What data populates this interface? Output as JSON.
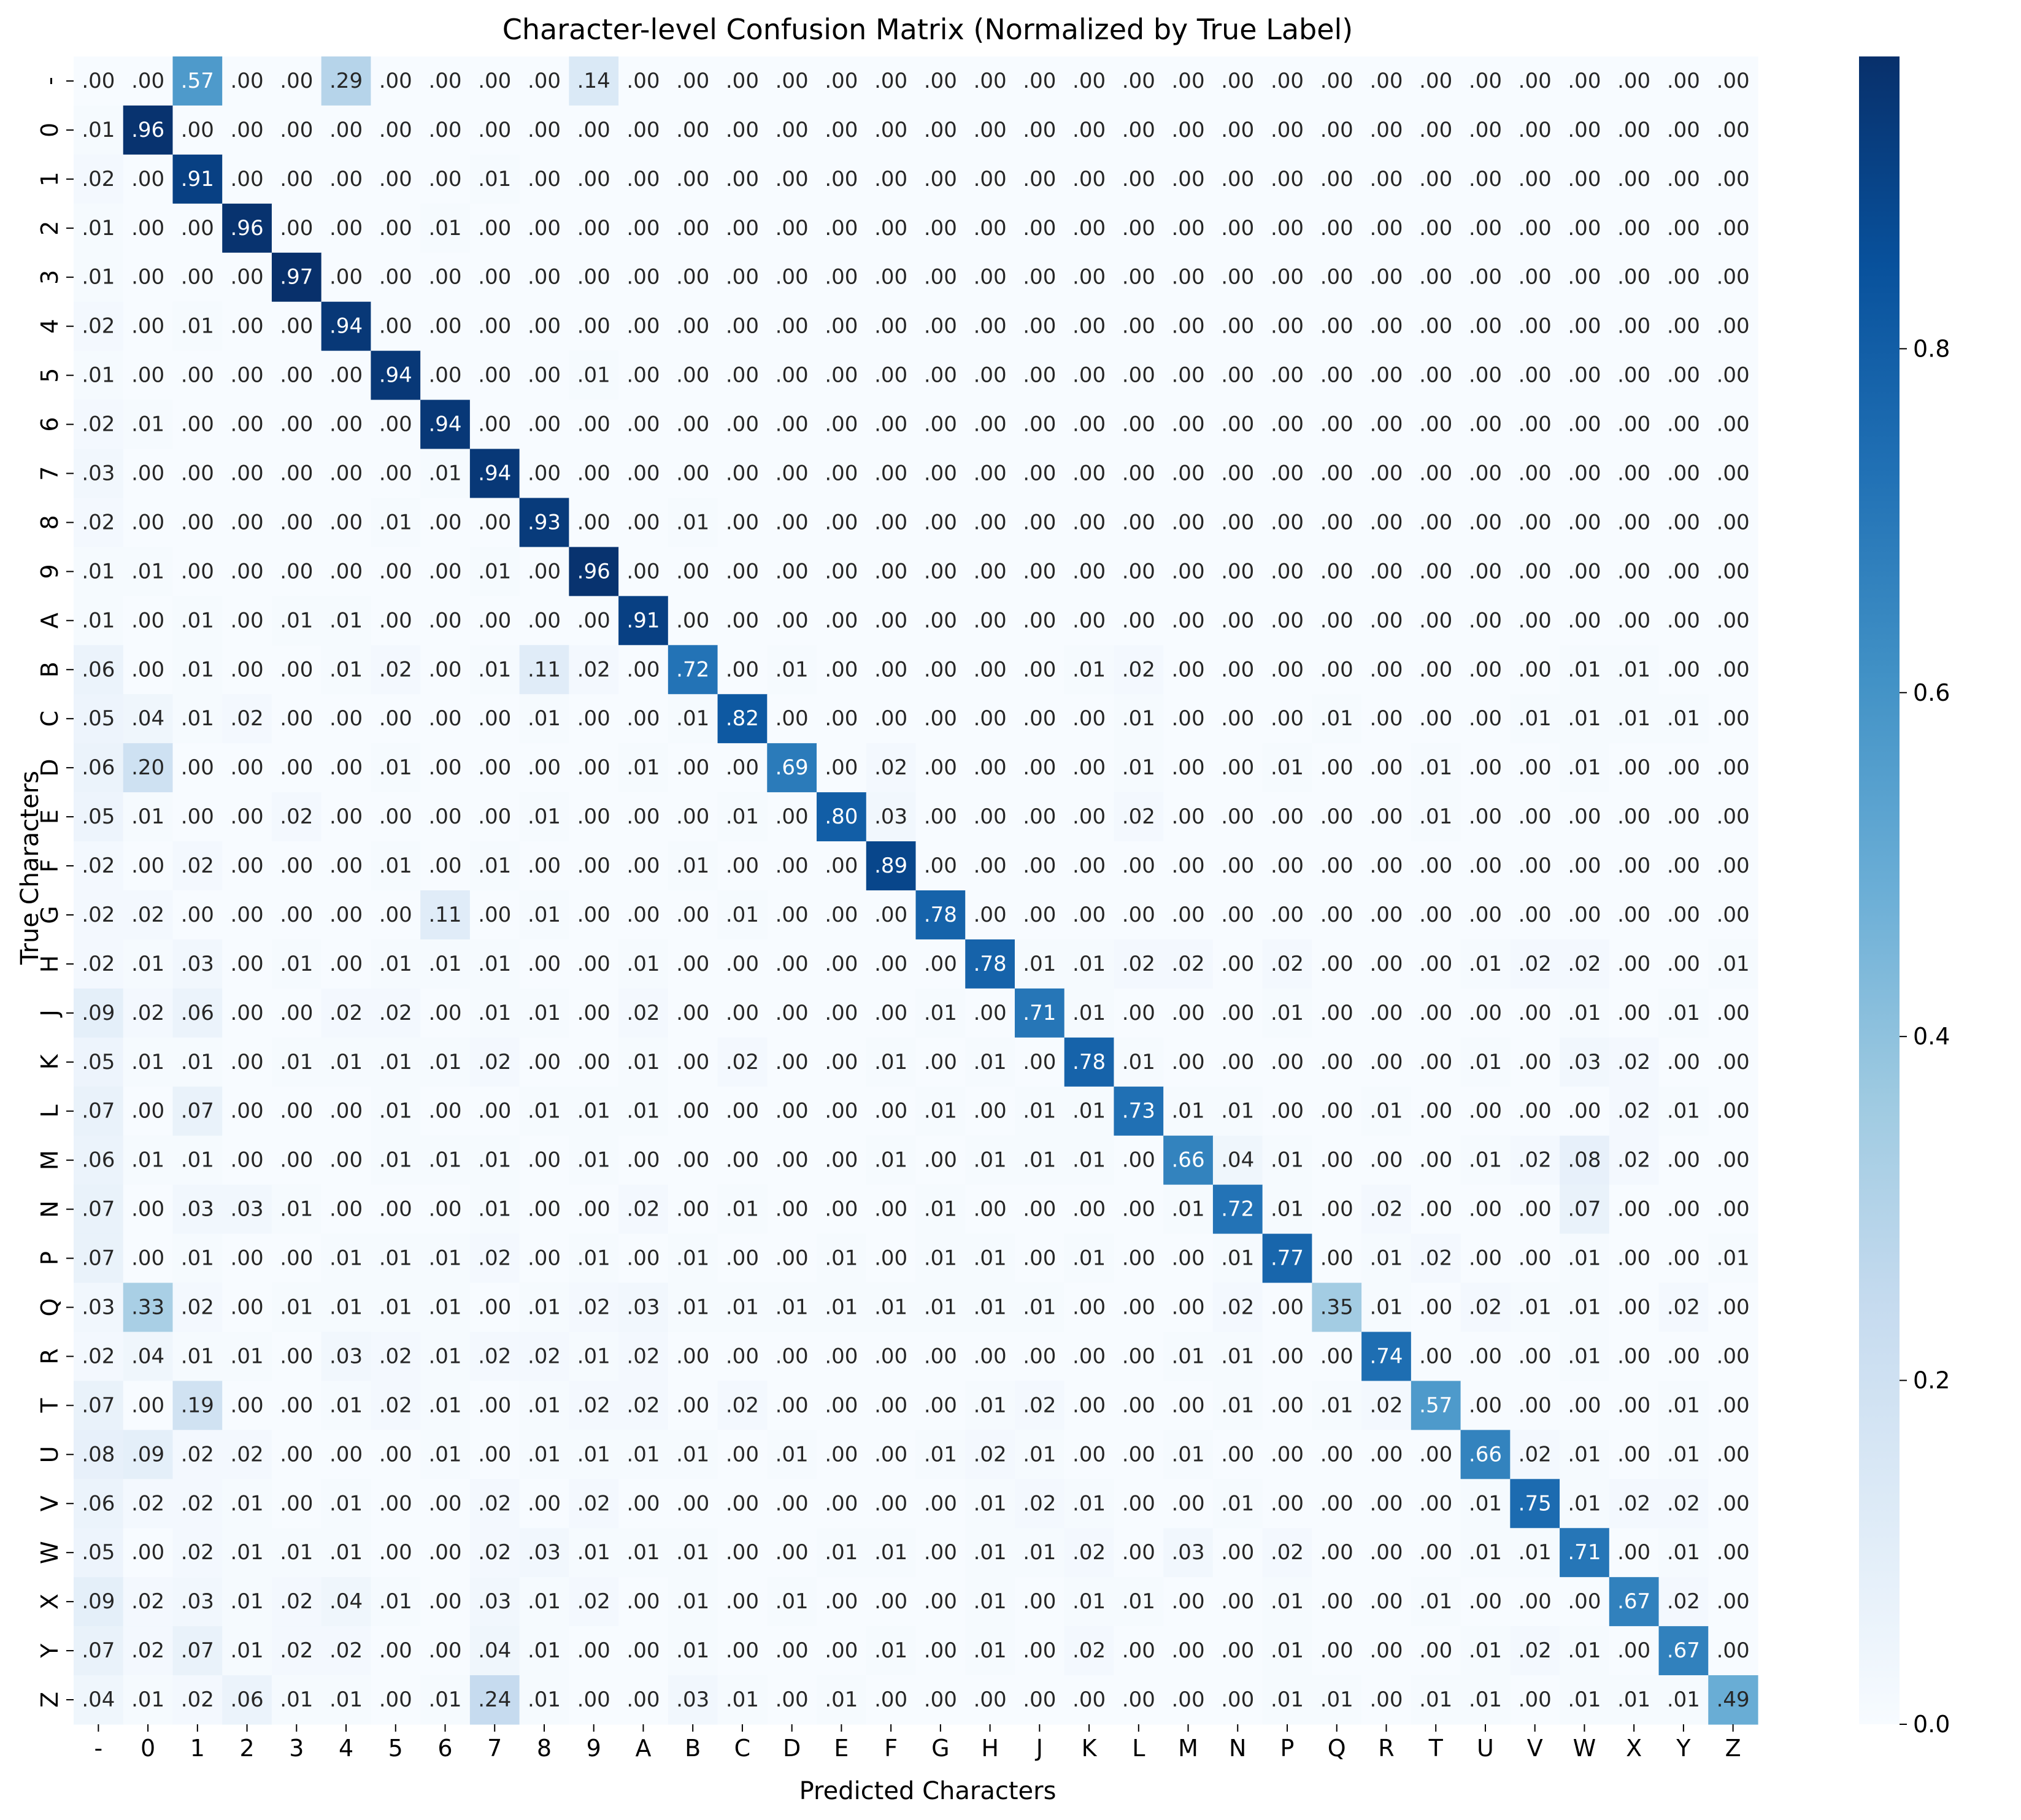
{
  "chart_data": {
    "type": "heatmap",
    "title": "Character-level Confusion Matrix (Normalized by True Label)",
    "xlabel": "Predicted Characters",
    "ylabel": "True Characters",
    "x_categories": [
      "-",
      "0",
      "1",
      "2",
      "3",
      "4",
      "5",
      "6",
      "7",
      "8",
      "9",
      "A",
      "B",
      "C",
      "D",
      "E",
      "F",
      "G",
      "H",
      "J",
      "K",
      "L",
      "M",
      "N",
      "P",
      "Q",
      "R",
      "T",
      "U",
      "V",
      "W",
      "X",
      "Y",
      "Z"
    ],
    "y_categories": [
      "-",
      "0",
      "1",
      "2",
      "3",
      "4",
      "5",
      "6",
      "7",
      "8",
      "9",
      "A",
      "B",
      "C",
      "D",
      "E",
      "F",
      "G",
      "H",
      "J",
      "K",
      "L",
      "M",
      "N",
      "P",
      "Q",
      "R",
      "T",
      "U",
      "V",
      "W",
      "X",
      "Y",
      "Z"
    ],
    "colormap": "Blues",
    "colorbar": {
      "min": 0.0,
      "max": 0.97,
      "ticks": [
        0.0,
        0.2,
        0.4,
        0.6,
        0.8
      ],
      "tick_labels": [
        "0.0",
        "0.2",
        "0.4",
        "0.6",
        "0.8"
      ]
    },
    "values": [
      [
        0.0,
        0.0,
        0.57,
        0.0,
        0.0,
        0.29,
        0.0,
        0.0,
        0.0,
        0.0,
        0.14,
        0.0,
        0.0,
        0.0,
        0.0,
        0.0,
        0.0,
        0.0,
        0.0,
        0.0,
        0.0,
        0.0,
        0.0,
        0.0,
        0.0,
        0.0,
        0.0,
        0.0,
        0.0,
        0.0,
        0.0,
        0.0,
        0.0,
        0.0
      ],
      [
        0.01,
        0.96,
        0.0,
        0.0,
        0.0,
        0.0,
        0.0,
        0.0,
        0.0,
        0.0,
        0.0,
        0.0,
        0.0,
        0.0,
        0.0,
        0.0,
        0.0,
        0.0,
        0.0,
        0.0,
        0.0,
        0.0,
        0.0,
        0.0,
        0.0,
        0.0,
        0.0,
        0.0,
        0.0,
        0.0,
        0.0,
        0.0,
        0.0,
        0.0
      ],
      [
        0.02,
        0.0,
        0.91,
        0.0,
        0.0,
        0.0,
        0.0,
        0.0,
        0.01,
        0.0,
        0.0,
        0.0,
        0.0,
        0.0,
        0.0,
        0.0,
        0.0,
        0.0,
        0.0,
        0.0,
        0.0,
        0.0,
        0.0,
        0.0,
        0.0,
        0.0,
        0.0,
        0.0,
        0.0,
        0.0,
        0.0,
        0.0,
        0.0,
        0.0
      ],
      [
        0.01,
        0.0,
        0.0,
        0.96,
        0.0,
        0.0,
        0.0,
        0.01,
        0.0,
        0.0,
        0.0,
        0.0,
        0.0,
        0.0,
        0.0,
        0.0,
        0.0,
        0.0,
        0.0,
        0.0,
        0.0,
        0.0,
        0.0,
        0.0,
        0.0,
        0.0,
        0.0,
        0.0,
        0.0,
        0.0,
        0.0,
        0.0,
        0.0,
        0.0
      ],
      [
        0.01,
        0.0,
        0.0,
        0.0,
        0.97,
        0.0,
        0.0,
        0.0,
        0.0,
        0.0,
        0.0,
        0.0,
        0.0,
        0.0,
        0.0,
        0.0,
        0.0,
        0.0,
        0.0,
        0.0,
        0.0,
        0.0,
        0.0,
        0.0,
        0.0,
        0.0,
        0.0,
        0.0,
        0.0,
        0.0,
        0.0,
        0.0,
        0.0,
        0.0
      ],
      [
        0.02,
        0.0,
        0.01,
        0.0,
        0.0,
        0.94,
        0.0,
        0.0,
        0.0,
        0.0,
        0.0,
        0.0,
        0.0,
        0.0,
        0.0,
        0.0,
        0.0,
        0.0,
        0.0,
        0.0,
        0.0,
        0.0,
        0.0,
        0.0,
        0.0,
        0.0,
        0.0,
        0.0,
        0.0,
        0.0,
        0.0,
        0.0,
        0.0,
        0.0
      ],
      [
        0.01,
        0.0,
        0.0,
        0.0,
        0.0,
        0.0,
        0.94,
        0.0,
        0.0,
        0.0,
        0.01,
        0.0,
        0.0,
        0.0,
        0.0,
        0.0,
        0.0,
        0.0,
        0.0,
        0.0,
        0.0,
        0.0,
        0.0,
        0.0,
        0.0,
        0.0,
        0.0,
        0.0,
        0.0,
        0.0,
        0.0,
        0.0,
        0.0,
        0.0
      ],
      [
        0.02,
        0.01,
        0.0,
        0.0,
        0.0,
        0.0,
        0.0,
        0.94,
        0.0,
        0.0,
        0.0,
        0.0,
        0.0,
        0.0,
        0.0,
        0.0,
        0.0,
        0.0,
        0.0,
        0.0,
        0.0,
        0.0,
        0.0,
        0.0,
        0.0,
        0.0,
        0.0,
        0.0,
        0.0,
        0.0,
        0.0,
        0.0,
        0.0,
        0.0
      ],
      [
        0.03,
        0.0,
        0.0,
        0.0,
        0.0,
        0.0,
        0.0,
        0.01,
        0.94,
        0.0,
        0.0,
        0.0,
        0.0,
        0.0,
        0.0,
        0.0,
        0.0,
        0.0,
        0.0,
        0.0,
        0.0,
        0.0,
        0.0,
        0.0,
        0.0,
        0.0,
        0.0,
        0.0,
        0.0,
        0.0,
        0.0,
        0.0,
        0.0,
        0.0
      ],
      [
        0.02,
        0.0,
        0.0,
        0.0,
        0.0,
        0.0,
        0.01,
        0.0,
        0.0,
        0.93,
        0.0,
        0.0,
        0.01,
        0.0,
        0.0,
        0.0,
        0.0,
        0.0,
        0.0,
        0.0,
        0.0,
        0.0,
        0.0,
        0.0,
        0.0,
        0.0,
        0.0,
        0.0,
        0.0,
        0.0,
        0.0,
        0.0,
        0.0,
        0.0
      ],
      [
        0.01,
        0.01,
        0.0,
        0.0,
        0.0,
        0.0,
        0.0,
        0.0,
        0.01,
        0.0,
        0.96,
        0.0,
        0.0,
        0.0,
        0.0,
        0.0,
        0.0,
        0.0,
        0.0,
        0.0,
        0.0,
        0.0,
        0.0,
        0.0,
        0.0,
        0.0,
        0.0,
        0.0,
        0.0,
        0.0,
        0.0,
        0.0,
        0.0,
        0.0
      ],
      [
        0.01,
        0.0,
        0.01,
        0.0,
        0.01,
        0.01,
        0.0,
        0.0,
        0.0,
        0.0,
        0.0,
        0.91,
        0.0,
        0.0,
        0.0,
        0.0,
        0.0,
        0.0,
        0.0,
        0.0,
        0.0,
        0.0,
        0.0,
        0.0,
        0.0,
        0.0,
        0.0,
        0.0,
        0.0,
        0.0,
        0.0,
        0.0,
        0.0,
        0.0
      ],
      [
        0.06,
        0.0,
        0.01,
        0.0,
        0.0,
        0.01,
        0.02,
        0.0,
        0.01,
        0.11,
        0.02,
        0.0,
        0.72,
        0.0,
        0.01,
        0.0,
        0.0,
        0.0,
        0.0,
        0.0,
        0.01,
        0.02,
        0.0,
        0.0,
        0.0,
        0.0,
        0.0,
        0.0,
        0.0,
        0.0,
        0.01,
        0.01,
        0.0,
        0.0
      ],
      [
        0.05,
        0.04,
        0.01,
        0.02,
        0.0,
        0.0,
        0.0,
        0.0,
        0.0,
        0.01,
        0.0,
        0.0,
        0.01,
        0.82,
        0.0,
        0.0,
        0.0,
        0.0,
        0.0,
        0.0,
        0.0,
        0.01,
        0.0,
        0.0,
        0.0,
        0.01,
        0.0,
        0.0,
        0.0,
        0.01,
        0.01,
        0.01,
        0.01,
        0.0
      ],
      [
        0.06,
        0.2,
        0.0,
        0.0,
        0.0,
        0.0,
        0.01,
        0.0,
        0.0,
        0.0,
        0.0,
        0.01,
        0.0,
        0.0,
        0.69,
        0.0,
        0.02,
        0.0,
        0.0,
        0.0,
        0.0,
        0.01,
        0.0,
        0.0,
        0.01,
        0.0,
        0.0,
        0.01,
        0.0,
        0.0,
        0.01,
        0.0,
        0.0,
        0.0
      ],
      [
        0.05,
        0.01,
        0.0,
        0.0,
        0.02,
        0.0,
        0.0,
        0.0,
        0.0,
        0.01,
        0.0,
        0.0,
        0.0,
        0.01,
        0.0,
        0.8,
        0.03,
        0.0,
        0.0,
        0.0,
        0.0,
        0.02,
        0.0,
        0.0,
        0.0,
        0.0,
        0.0,
        0.01,
        0.0,
        0.0,
        0.0,
        0.0,
        0.0,
        0.0
      ],
      [
        0.02,
        0.0,
        0.02,
        0.0,
        0.0,
        0.0,
        0.01,
        0.0,
        0.01,
        0.0,
        0.0,
        0.0,
        0.01,
        0.0,
        0.0,
        0.0,
        0.89,
        0.0,
        0.0,
        0.0,
        0.0,
        0.0,
        0.0,
        0.0,
        0.0,
        0.0,
        0.0,
        0.0,
        0.0,
        0.0,
        0.0,
        0.0,
        0.0,
        0.0
      ],
      [
        0.02,
        0.02,
        0.0,
        0.0,
        0.0,
        0.0,
        0.0,
        0.11,
        0.0,
        0.01,
        0.0,
        0.0,
        0.0,
        0.01,
        0.0,
        0.0,
        0.0,
        0.78,
        0.0,
        0.0,
        0.0,
        0.0,
        0.0,
        0.0,
        0.0,
        0.0,
        0.0,
        0.0,
        0.0,
        0.0,
        0.0,
        0.0,
        0.0,
        0.0
      ],
      [
        0.02,
        0.01,
        0.03,
        0.0,
        0.01,
        0.0,
        0.01,
        0.01,
        0.01,
        0.0,
        0.0,
        0.01,
        0.0,
        0.0,
        0.0,
        0.0,
        0.0,
        0.0,
        0.78,
        0.01,
        0.01,
        0.02,
        0.02,
        0.0,
        0.02,
        0.0,
        0.0,
        0.0,
        0.01,
        0.02,
        0.02,
        0.0,
        0.0,
        0.01
      ],
      [
        0.09,
        0.02,
        0.06,
        0.0,
        0.0,
        0.02,
        0.02,
        0.0,
        0.01,
        0.01,
        0.0,
        0.02,
        0.0,
        0.0,
        0.0,
        0.0,
        0.0,
        0.01,
        0.0,
        0.71,
        0.01,
        0.0,
        0.0,
        0.0,
        0.01,
        0.0,
        0.0,
        0.0,
        0.0,
        0.0,
        0.01,
        0.0,
        0.01,
        0.0
      ],
      [
        0.05,
        0.01,
        0.01,
        0.0,
        0.01,
        0.01,
        0.01,
        0.01,
        0.02,
        0.0,
        0.0,
        0.01,
        0.0,
        0.02,
        0.0,
        0.0,
        0.01,
        0.0,
        0.01,
        0.0,
        0.78,
        0.01,
        0.0,
        0.0,
        0.0,
        0.0,
        0.0,
        0.0,
        0.01,
        0.0,
        0.03,
        0.02,
        0.0,
        0.0
      ],
      [
        0.07,
        0.0,
        0.07,
        0.0,
        0.0,
        0.0,
        0.01,
        0.0,
        0.0,
        0.01,
        0.01,
        0.01,
        0.0,
        0.0,
        0.0,
        0.0,
        0.0,
        0.01,
        0.0,
        0.01,
        0.01,
        0.73,
        0.01,
        0.01,
        0.0,
        0.0,
        0.01,
        0.0,
        0.0,
        0.0,
        0.0,
        0.02,
        0.01,
        0.0
      ],
      [
        0.06,
        0.01,
        0.01,
        0.0,
        0.0,
        0.0,
        0.01,
        0.01,
        0.01,
        0.0,
        0.01,
        0.0,
        0.0,
        0.0,
        0.0,
        0.0,
        0.01,
        0.0,
        0.01,
        0.01,
        0.01,
        0.0,
        0.66,
        0.04,
        0.01,
        0.0,
        0.0,
        0.0,
        0.01,
        0.02,
        0.08,
        0.02,
        0.0,
        0.0
      ],
      [
        0.07,
        0.0,
        0.03,
        0.03,
        0.01,
        0.0,
        0.0,
        0.0,
        0.01,
        0.0,
        0.0,
        0.02,
        0.0,
        0.01,
        0.0,
        0.0,
        0.0,
        0.01,
        0.0,
        0.0,
        0.0,
        0.0,
        0.01,
        0.72,
        0.01,
        0.0,
        0.02,
        0.0,
        0.0,
        0.0,
        0.07,
        0.0,
        0.0,
        0.0
      ],
      [
        0.07,
        0.0,
        0.01,
        0.0,
        0.0,
        0.01,
        0.01,
        0.01,
        0.02,
        0.0,
        0.01,
        0.0,
        0.01,
        0.0,
        0.0,
        0.01,
        0.0,
        0.01,
        0.01,
        0.0,
        0.01,
        0.0,
        0.0,
        0.01,
        0.77,
        0.0,
        0.01,
        0.02,
        0.0,
        0.0,
        0.01,
        0.0,
        0.0,
        0.01
      ],
      [
        0.03,
        0.33,
        0.02,
        0.0,
        0.01,
        0.01,
        0.01,
        0.01,
        0.0,
        0.01,
        0.02,
        0.03,
        0.01,
        0.01,
        0.01,
        0.01,
        0.01,
        0.01,
        0.01,
        0.01,
        0.0,
        0.0,
        0.0,
        0.02,
        0.0,
        0.35,
        0.01,
        0.0,
        0.02,
        0.01,
        0.01,
        0.0,
        0.02,
        0.0
      ],
      [
        0.02,
        0.04,
        0.01,
        0.01,
        0.0,
        0.03,
        0.02,
        0.01,
        0.02,
        0.02,
        0.01,
        0.02,
        0.0,
        0.0,
        0.0,
        0.0,
        0.0,
        0.0,
        0.0,
        0.0,
        0.0,
        0.0,
        0.01,
        0.01,
        0.0,
        0.0,
        0.74,
        0.0,
        0.0,
        0.0,
        0.01,
        0.0,
        0.0,
        0.0
      ],
      [
        0.07,
        0.0,
        0.19,
        0.0,
        0.0,
        0.01,
        0.02,
        0.01,
        0.0,
        0.01,
        0.02,
        0.02,
        0.0,
        0.02,
        0.0,
        0.0,
        0.0,
        0.0,
        0.01,
        0.02,
        0.0,
        0.0,
        0.0,
        0.01,
        0.0,
        0.01,
        0.02,
        0.57,
        0.0,
        0.0,
        0.0,
        0.0,
        0.01,
        0.0
      ],
      [
        0.08,
        0.09,
        0.02,
        0.02,
        0.0,
        0.0,
        0.0,
        0.01,
        0.0,
        0.01,
        0.01,
        0.01,
        0.01,
        0.0,
        0.01,
        0.0,
        0.0,
        0.01,
        0.02,
        0.01,
        0.0,
        0.0,
        0.01,
        0.0,
        0.0,
        0.0,
        0.0,
        0.0,
        0.66,
        0.02,
        0.01,
        0.0,
        0.01,
        0.0
      ],
      [
        0.06,
        0.02,
        0.02,
        0.01,
        0.0,
        0.01,
        0.0,
        0.0,
        0.02,
        0.0,
        0.02,
        0.0,
        0.0,
        0.0,
        0.0,
        0.0,
        0.0,
        0.0,
        0.01,
        0.02,
        0.01,
        0.0,
        0.0,
        0.01,
        0.0,
        0.0,
        0.0,
        0.0,
        0.01,
        0.75,
        0.01,
        0.02,
        0.02,
        0.0
      ],
      [
        0.05,
        0.0,
        0.02,
        0.01,
        0.01,
        0.01,
        0.0,
        0.0,
        0.02,
        0.03,
        0.01,
        0.01,
        0.01,
        0.0,
        0.0,
        0.01,
        0.01,
        0.0,
        0.01,
        0.01,
        0.02,
        0.0,
        0.03,
        0.0,
        0.02,
        0.0,
        0.0,
        0.0,
        0.01,
        0.01,
        0.71,
        0.0,
        0.01,
        0.0
      ],
      [
        0.09,
        0.02,
        0.03,
        0.01,
        0.02,
        0.04,
        0.01,
        0.0,
        0.03,
        0.01,
        0.02,
        0.0,
        0.01,
        0.0,
        0.01,
        0.0,
        0.0,
        0.0,
        0.01,
        0.0,
        0.01,
        0.01,
        0.0,
        0.0,
        0.01,
        0.0,
        0.0,
        0.01,
        0.0,
        0.0,
        0.0,
        0.67,
        0.02,
        0.0
      ],
      [
        0.07,
        0.02,
        0.07,
        0.01,
        0.02,
        0.02,
        0.0,
        0.0,
        0.04,
        0.01,
        0.0,
        0.0,
        0.01,
        0.0,
        0.0,
        0.0,
        0.01,
        0.0,
        0.01,
        0.0,
        0.02,
        0.0,
        0.0,
        0.0,
        0.01,
        0.0,
        0.0,
        0.0,
        0.01,
        0.02,
        0.01,
        0.0,
        0.67,
        0.0
      ],
      [
        0.04,
        0.01,
        0.02,
        0.06,
        0.01,
        0.01,
        0.0,
        0.01,
        0.24,
        0.01,
        0.0,
        0.0,
        0.03,
        0.01,
        0.0,
        0.01,
        0.0,
        0.0,
        0.0,
        0.0,
        0.0,
        0.0,
        0.0,
        0.0,
        0.01,
        0.01,
        0.0,
        0.01,
        0.01,
        0.0,
        0.01,
        0.01,
        0.01,
        0.49
      ]
    ]
  }
}
